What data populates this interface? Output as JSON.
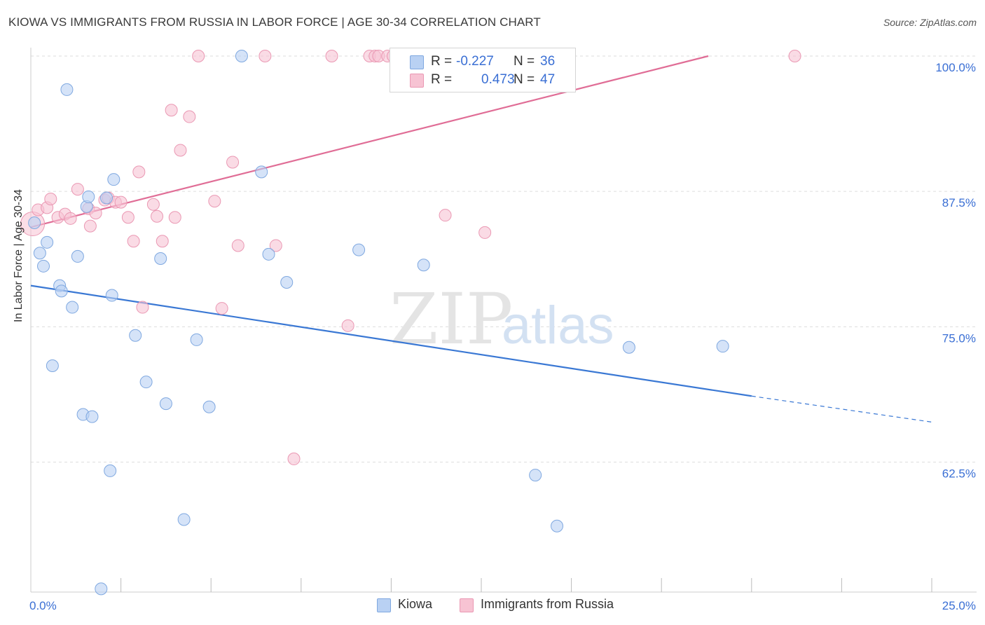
{
  "title": "KIOWA VS IMMIGRANTS FROM RUSSIA IN LABOR FORCE | AGE 30-34 CORRELATION CHART",
  "source": "Source: ZipAtlas.com",
  "watermark": {
    "zip": "ZIP",
    "atlas": "atlas"
  },
  "colors": {
    "kiowa_fill": "#b9d1f3",
    "kiowa_stroke": "#7fa8e0",
    "kiowa_line": "#3a78d4",
    "russia_fill": "#f7c3d3",
    "russia_stroke": "#ea98b3",
    "russia_line": "#e06d96",
    "tick_text": "#3a6fd4",
    "grid": "#dddddd"
  },
  "legend": {
    "rows": [
      {
        "r_label": "R =",
        "r_value": "-0.227",
        "n_label": "N =",
        "n_value": "36"
      },
      {
        "r_label": "R =",
        "r_value": "0.473",
        "n_label": "N =",
        "n_value": "47"
      }
    ]
  },
  "bottom_legend": [
    {
      "label": "Kiowa"
    },
    {
      "label": "Immigrants from Russia"
    }
  ],
  "chart_data": {
    "type": "scatter",
    "title": "KIOWA VS IMMIGRANTS FROM RUSSIA IN LABOR FORCE | AGE 30-34 CORRELATION CHART",
    "xlabel": "",
    "ylabel": "In Labor Force | Age 30-34",
    "xlim": [
      0,
      25
    ],
    "ylim": [
      50.5,
      100
    ],
    "x_tick_labels": [
      {
        "value": 0,
        "label": "0.0%"
      },
      {
        "value": 25,
        "label": "25.0%"
      }
    ],
    "x_minor_ticks": [
      2.5,
      5,
      7.5,
      10,
      12.5,
      15,
      17.5,
      20,
      22.5,
      25
    ],
    "y_ticks": [
      {
        "value": 100,
        "label": "100.0%"
      },
      {
        "value": 87.5,
        "label": "87.5%"
      },
      {
        "value": 75,
        "label": "75.0%"
      },
      {
        "value": 62.5,
        "label": "62.5%"
      }
    ],
    "grid": true,
    "legend_position": "top-center",
    "series": [
      {
        "name": "Kiowa",
        "points": [
          [
            0.1,
            84.6
          ],
          [
            0.25,
            81.8
          ],
          [
            0.35,
            80.6
          ],
          [
            0.45,
            82.8
          ],
          [
            0.6,
            71.4
          ],
          [
            0.8,
            78.8
          ],
          [
            0.85,
            78.3
          ],
          [
            1.0,
            96.9
          ],
          [
            1.15,
            76.8
          ],
          [
            1.3,
            81.5
          ],
          [
            1.45,
            66.9
          ],
          [
            1.55,
            86.1
          ],
          [
            1.6,
            87.0
          ],
          [
            1.7,
            66.7
          ],
          [
            1.95,
            50.8
          ],
          [
            2.1,
            86.9
          ],
          [
            2.2,
            61.7
          ],
          [
            2.25,
            77.9
          ],
          [
            2.3,
            88.6
          ],
          [
            2.9,
            74.2
          ],
          [
            3.2,
            69.9
          ],
          [
            3.6,
            81.3
          ],
          [
            3.75,
            67.9
          ],
          [
            4.25,
            57.2
          ],
          [
            4.6,
            73.8
          ],
          [
            4.95,
            67.6
          ],
          [
            5.85,
            100.0
          ],
          [
            6.4,
            89.3
          ],
          [
            6.6,
            81.7
          ],
          [
            7.1,
            79.1
          ],
          [
            9.1,
            82.1
          ],
          [
            10.9,
            80.7
          ],
          [
            14.0,
            61.3
          ],
          [
            14.6,
            56.6
          ],
          [
            16.6,
            73.1
          ],
          [
            19.2,
            73.2
          ]
        ],
        "trend": {
          "x_start": 0,
          "y_start": 78.8,
          "x_end": 20,
          "y_end": 68.6,
          "x_dash_end": 25,
          "y_dash_end": 66.2
        }
      },
      {
        "name": "Immigrants from Russia",
        "points": [
          [
            0.05,
            84.5
          ],
          [
            0.2,
            85.8
          ],
          [
            0.45,
            86.0
          ],
          [
            0.55,
            86.8
          ],
          [
            0.75,
            85.1
          ],
          [
            0.95,
            85.4
          ],
          [
            1.1,
            85.0
          ],
          [
            1.3,
            87.7
          ],
          [
            1.6,
            85.9
          ],
          [
            1.65,
            84.3
          ],
          [
            1.8,
            85.5
          ],
          [
            2.05,
            86.7
          ],
          [
            2.15,
            86.9
          ],
          [
            2.35,
            86.5
          ],
          [
            2.5,
            86.5
          ],
          [
            2.7,
            85.1
          ],
          [
            2.85,
            82.9
          ],
          [
            3.0,
            89.3
          ],
          [
            3.1,
            76.8
          ],
          [
            3.4,
            86.3
          ],
          [
            3.5,
            85.2
          ],
          [
            3.65,
            82.9
          ],
          [
            3.9,
            95.0
          ],
          [
            4.0,
            85.1
          ],
          [
            4.15,
            91.3
          ],
          [
            4.4,
            94.4
          ],
          [
            4.65,
            100.0
          ],
          [
            5.1,
            86.6
          ],
          [
            5.3,
            76.7
          ],
          [
            5.6,
            90.2
          ],
          [
            5.75,
            82.5
          ],
          [
            6.5,
            100.0
          ],
          [
            6.8,
            82.5
          ],
          [
            7.3,
            62.8
          ],
          [
            8.35,
            100.0
          ],
          [
            8.8,
            75.1
          ],
          [
            9.4,
            100.0
          ],
          [
            9.55,
            100.0
          ],
          [
            9.65,
            100.0
          ],
          [
            9.9,
            100.0
          ],
          [
            10.05,
            100.0
          ],
          [
            10.5,
            100.0
          ],
          [
            11.5,
            85.3
          ],
          [
            12.1,
            100.0
          ],
          [
            12.3,
            100.0
          ],
          [
            12.6,
            83.7
          ],
          [
            21.2,
            100.0
          ]
        ],
        "trend": {
          "x_start": 0,
          "y_start": 84.2,
          "x_end": 18.8,
          "y_end": 100.0
        }
      }
    ]
  }
}
